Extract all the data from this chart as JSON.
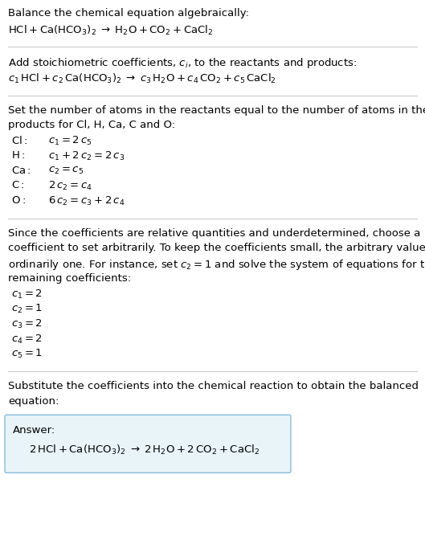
{
  "bg_color": "#ffffff",
  "text_color": "#000000",
  "answer_box_color": "#e8f4f8",
  "answer_box_edge": "#88bbdd",
  "section1_title": "Balance the chemical equation algebraically:",
  "section1_eq": "$\\mathrm{HCl + Ca(HCO_3)_2 \\;\\rightarrow\\; H_2O + CO_2 + CaCl_2}$",
  "section2_title": "Add stoichiometric coefficients, $c_i$, to the reactants and products:",
  "section2_eq": "$c_1\\,\\mathrm{HCl} + c_2\\,\\mathrm{Ca(HCO_3)_2} \\;\\rightarrow\\; c_3\\,\\mathrm{H_2O} + c_4\\,\\mathrm{CO_2} + c_5\\,\\mathrm{CaCl_2}$",
  "section3_title1": "Set the number of atoms in the reactants equal to the number of atoms in the",
  "section3_title2": "products for Cl, H, Ca, C and O:",
  "section3_lines": [
    [
      "$\\mathrm{Cl:}$",
      "$c_1 = 2\\,c_5$"
    ],
    [
      "$\\mathrm{H:}$",
      "$c_1 + 2\\,c_2 = 2\\,c_3$"
    ],
    [
      "$\\mathrm{Ca:}$",
      "$c_2 = c_5$"
    ],
    [
      "$\\mathrm{C:}$",
      "$2\\,c_2 = c_4$"
    ],
    [
      "$\\mathrm{O:}$",
      "$6\\,c_2 = c_3 + 2\\,c_4$"
    ]
  ],
  "section4_title1": "Since the coefficients are relative quantities and underdetermined, choose a",
  "section4_title2": "coefficient to set arbitrarily. To keep the coefficients small, the arbitrary value is",
  "section4_title3": "ordinarily one. For instance, set $c_2 = 1$ and solve the system of equations for the",
  "section4_title4": "remaining coefficients:",
  "section4_lines": [
    "$c_1 = 2$",
    "$c_2 = 1$",
    "$c_3 = 2$",
    "$c_4 = 2$",
    "$c_5 = 1$"
  ],
  "section5_title1": "Substitute the coefficients into the chemical reaction to obtain the balanced",
  "section5_title2": "equation:",
  "answer_label": "Answer:",
  "answer_eq": "$\\mathrm{2\\,HCl + Ca(HCO_3)_2 \\;\\rightarrow\\; 2\\,H_2O + 2\\,CO_2 + CaCl_2}$",
  "figsize": [
    5.29,
    6.67
  ],
  "dpi": 100
}
